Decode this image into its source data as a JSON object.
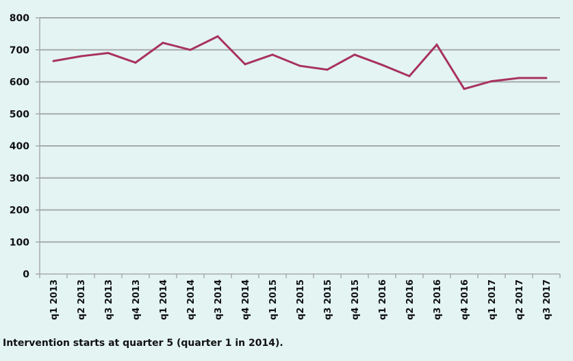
{
  "chart_data": {
    "type": "line",
    "title": "",
    "xlabel": "",
    "ylabel": "",
    "categories": [
      "q1 2013",
      "q2 2013",
      "q3 2013",
      "q4 2013",
      "q1 2014",
      "q2 2014",
      "q3 2014",
      "q4 2014",
      "q1 2015",
      "q2 2015",
      "q3 2015",
      "q4 2015",
      "q1 2016",
      "q2 2016",
      "q3 2016",
      "q4 2016",
      "q1 2017",
      "q2 2017",
      "q3 2017"
    ],
    "series": [
      {
        "values": [
          665,
          680,
          690,
          660,
          722,
          700,
          742,
          655,
          685,
          650,
          638,
          685,
          653,
          618,
          716,
          578,
          602,
          612,
          612
        ]
      }
    ],
    "ylim": [
      0,
      800
    ],
    "yticks": [
      0,
      100,
      200,
      300,
      400,
      500,
      600,
      700,
      800
    ],
    "grid": true,
    "line_color": "#a8325e",
    "grid_color": "#a9a9a9"
  },
  "footnote": "Intervention starts at quarter 5 (quarter 1 in 2014)."
}
